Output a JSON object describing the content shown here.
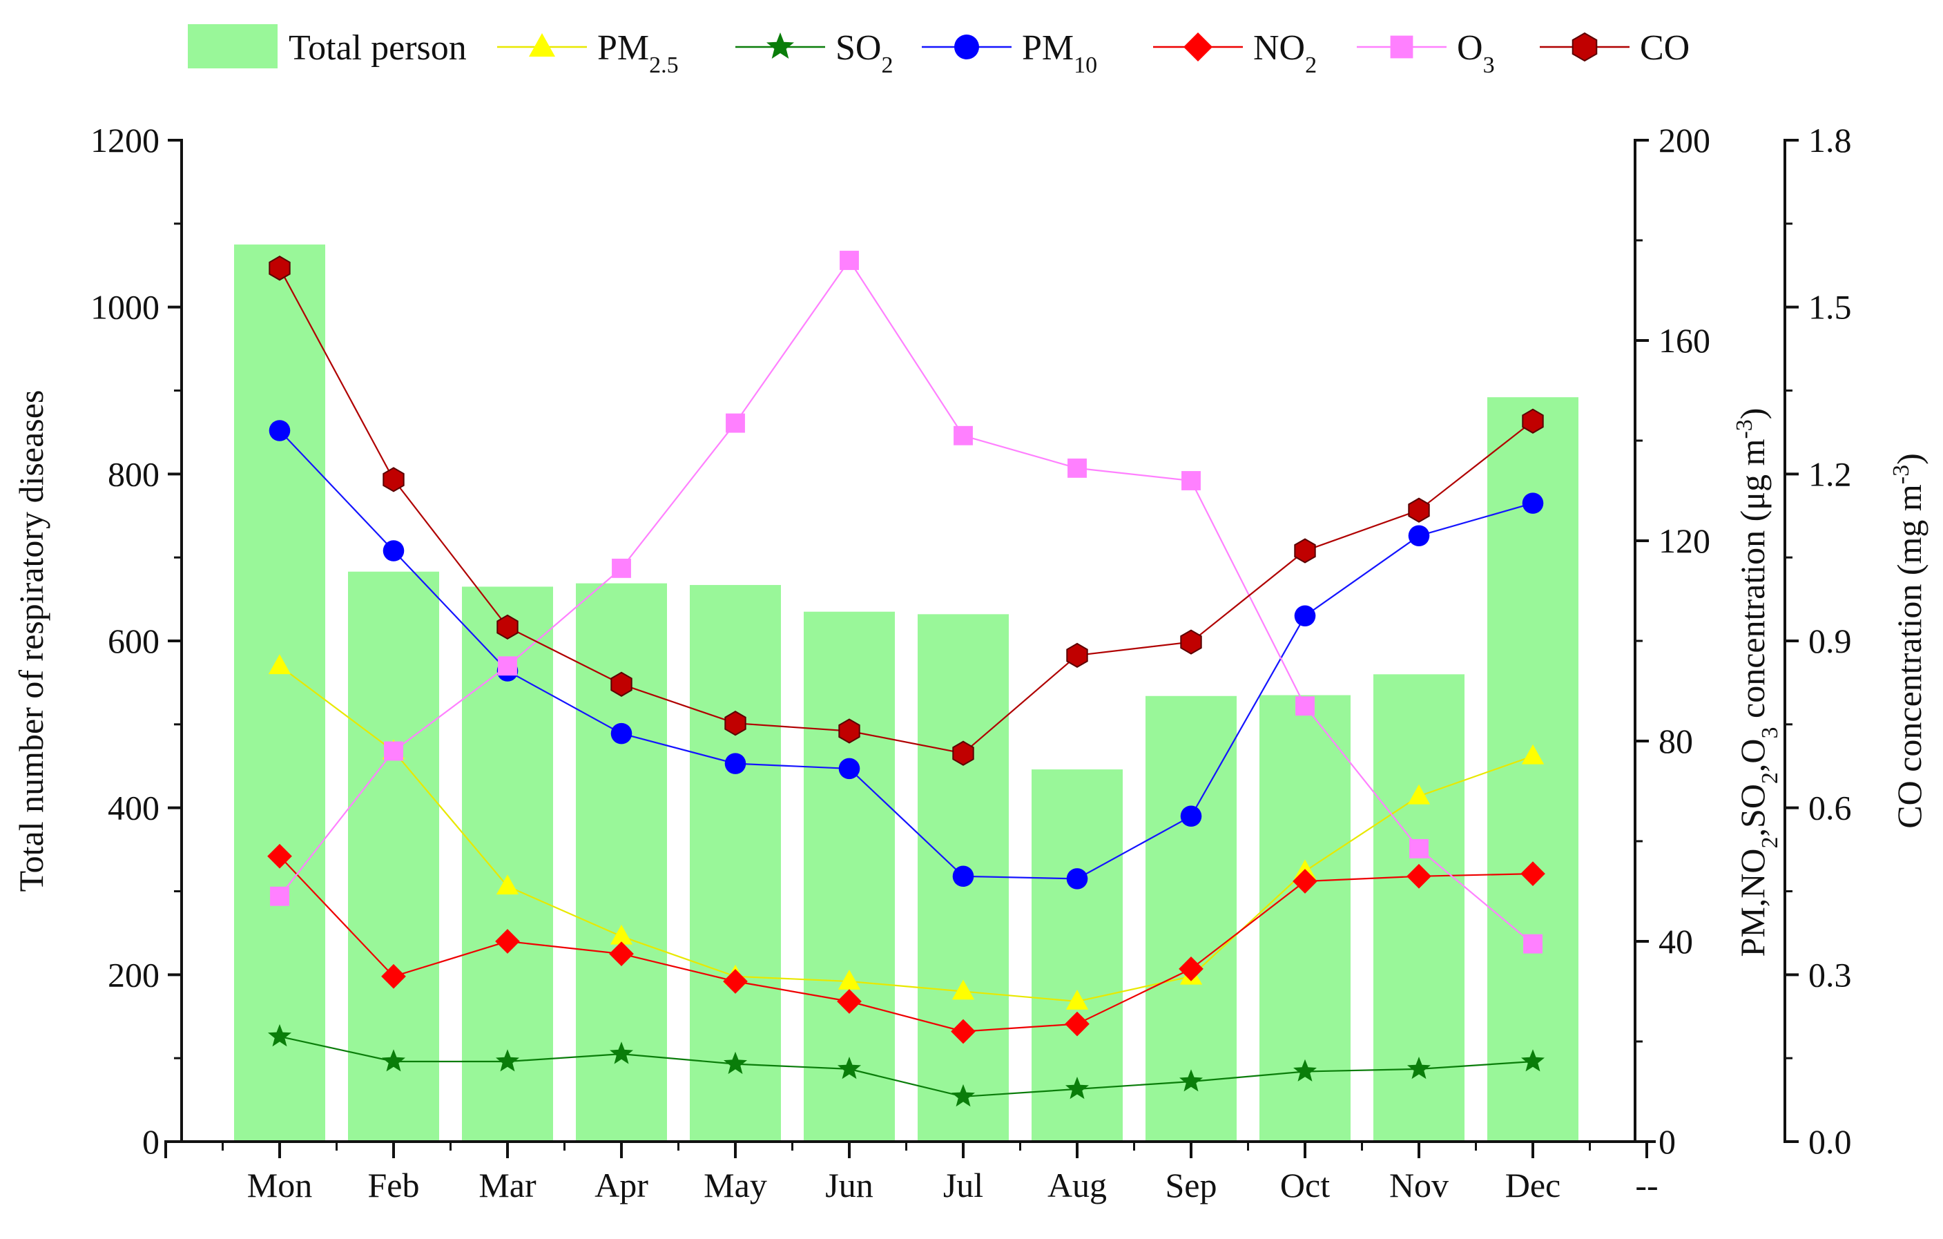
{
  "chart_data": {
    "type": "bar+line",
    "title": "",
    "categories": [
      "Mon",
      "Feb",
      "Mar",
      "Apr",
      "May",
      "Jun",
      "Jul",
      "Aug",
      "Sep",
      "Oct",
      "Nov",
      "Dec"
    ],
    "extra_x_tick_label": "--",
    "bar_series": {
      "name": "Total person",
      "axis": "left",
      "color": "#99f799",
      "values": [
        1075,
        683,
        665,
        669,
        667,
        635,
        632,
        446,
        534,
        535,
        560,
        892
      ]
    },
    "line_series": [
      {
        "name": "PM2.5",
        "name_main": "PM",
        "name_sub": "2.5",
        "axis": "right1",
        "color": "#ffff00",
        "line_color": "#e8e800",
        "marker": "triangle",
        "values": [
          95,
          78,
          51,
          41,
          33,
          32,
          30,
          28,
          33,
          54,
          69,
          77
        ]
      },
      {
        "name": "SO2",
        "name_main": "SO",
        "name_sub": "2",
        "axis": "right1",
        "color": "#0a7d0a",
        "line_color": "#0a7d0a",
        "marker": "star",
        "values": [
          21,
          16,
          16,
          17.5,
          15.5,
          14.5,
          9,
          10.5,
          12,
          14,
          14.5,
          16
        ]
      },
      {
        "name": "PM10",
        "name_main": "PM",
        "name_sub": "10",
        "axis": "right1",
        "color": "#0000ff",
        "line_color": "#1414ff",
        "marker": "circle",
        "values": [
          142,
          118,
          94,
          81.5,
          75.5,
          74.5,
          53,
          52.5,
          65,
          105,
          121,
          127.5
        ]
      },
      {
        "name": "NO2",
        "name_main": "NO",
        "name_sub": "2",
        "axis": "right1",
        "color": "#ff0000",
        "line_color": "#ee0000",
        "marker": "diamond",
        "values": [
          57,
          33,
          40,
          37.5,
          32,
          28,
          22,
          23.5,
          34.5,
          52,
          53,
          53.5
        ]
      },
      {
        "name": "O3",
        "name_main": "O",
        "name_sub": "3",
        "axis": "right1",
        "color": "#ff80ff",
        "line_color": "#ff80ff",
        "marker": "square",
        "values": [
          49,
          78,
          95,
          114.5,
          143.5,
          176,
          141,
          134.5,
          132,
          87,
          58.5,
          39.5
        ]
      },
      {
        "name": "CO",
        "name_main": "CO",
        "name_sub": "",
        "axis": "right2",
        "color": "#c00000",
        "line_color": "#b00000",
        "marker": "hexagon",
        "values": [
          1.57,
          1.19,
          0.925,
          0.822,
          0.752,
          0.738,
          0.698,
          0.874,
          0.898,
          1.062,
          1.135,
          1.295
        ]
      }
    ],
    "axes": {
      "left": {
        "label": "Total number of respiratory diseases",
        "ylim": [
          0,
          1200
        ],
        "ticks": [
          "0",
          "200",
          "400",
          "600",
          "800",
          "1000",
          "1200"
        ]
      },
      "right1": {
        "label_main": "PM,NO",
        "label_parts": [
          "PM,NO",
          "2",
          ",SO",
          "2",
          ",O",
          "3",
          " concentration (μg m",
          "-3",
          ")"
        ],
        "ylim": [
          0,
          200
        ],
        "ticks": [
          "0",
          "40",
          "80",
          "120",
          "160",
          "200"
        ]
      },
      "right2": {
        "label_parts": [
          "CO concentration (mg m",
          "-3",
          ")"
        ],
        "ylim": [
          0,
          1.8
        ],
        "ticks": [
          "0.0",
          "0.3",
          "0.6",
          "0.9",
          "1.2",
          "1.5",
          "1.8"
        ]
      }
    },
    "legend": {
      "position": "top",
      "first_label": "Total person"
    },
    "grid": false
  }
}
